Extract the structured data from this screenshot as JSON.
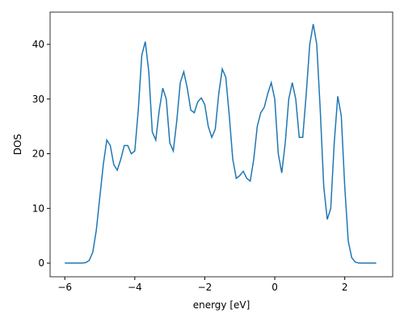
{
  "chart_data": {
    "type": "line",
    "xlabel": "energy [eV]",
    "ylabel": "DOS",
    "x": [
      -6.0,
      -5.9,
      -5.8,
      -5.7,
      -5.6,
      -5.5,
      -5.4,
      -5.3,
      -5.2,
      -5.1,
      -5.0,
      -4.9,
      -4.8,
      -4.7,
      -4.6,
      -4.5,
      -4.4,
      -4.3,
      -4.2,
      -4.1,
      -4.0,
      -3.9,
      -3.8,
      -3.7,
      -3.6,
      -3.5,
      -3.4,
      -3.3,
      -3.2,
      -3.1,
      -3.0,
      -2.9,
      -2.8,
      -2.7,
      -2.6,
      -2.5,
      -2.4,
      -2.3,
      -2.2,
      -2.1,
      -2.0,
      -1.9,
      -1.8,
      -1.7,
      -1.6,
      -1.5,
      -1.4,
      -1.3,
      -1.2,
      -1.1,
      -1.0,
      -0.9,
      -0.8,
      -0.7,
      -0.6,
      -0.5,
      -0.4,
      -0.3,
      -0.2,
      -0.1,
      0.0,
      0.1,
      0.2,
      0.3,
      0.4,
      0.5,
      0.6,
      0.7,
      0.8,
      0.9,
      1.0,
      1.1,
      1.2,
      1.3,
      1.4,
      1.5,
      1.6,
      1.7,
      1.8,
      1.9,
      2.0,
      2.1,
      2.2,
      2.3,
      2.4,
      2.5,
      2.6,
      2.7,
      2.8,
      2.9
    ],
    "series": [
      {
        "color": "#1f77b4",
        "values": [
          0,
          0,
          0,
          0,
          0,
          0,
          0.1,
          0.5,
          2,
          6,
          12,
          18,
          22.5,
          21.5,
          18,
          17,
          19,
          21.5,
          21.5,
          20,
          20.5,
          28,
          38,
          40.5,
          35,
          24,
          22.5,
          28,
          32,
          30,
          22,
          20.5,
          26,
          33,
          35,
          32,
          28,
          27.5,
          29.5,
          30.2,
          29,
          25,
          23,
          24.5,
          31,
          35.5,
          34,
          27,
          19,
          15.5,
          16,
          16.8,
          15.5,
          15,
          19,
          25,
          27.5,
          28.5,
          31,
          33,
          30,
          20,
          16.5,
          22,
          30,
          33,
          30,
          23,
          23,
          31,
          40,
          43.7,
          40,
          28,
          14,
          8,
          10,
          22,
          30.5,
          27,
          14,
          4,
          1,
          0.2,
          0,
          0,
          0,
          0,
          0,
          0
        ]
      }
    ],
    "xlim": [
      -6.42,
      3.37
    ],
    "ylim": [
      -2.5,
      45.9
    ],
    "xticks": [
      {
        "value": -6,
        "label": "−6"
      },
      {
        "value": -4,
        "label": "−4"
      },
      {
        "value": -2,
        "label": "−2"
      },
      0,
      2
    ],
    "yticks": [
      0,
      10,
      20,
      30,
      40
    ]
  }
}
